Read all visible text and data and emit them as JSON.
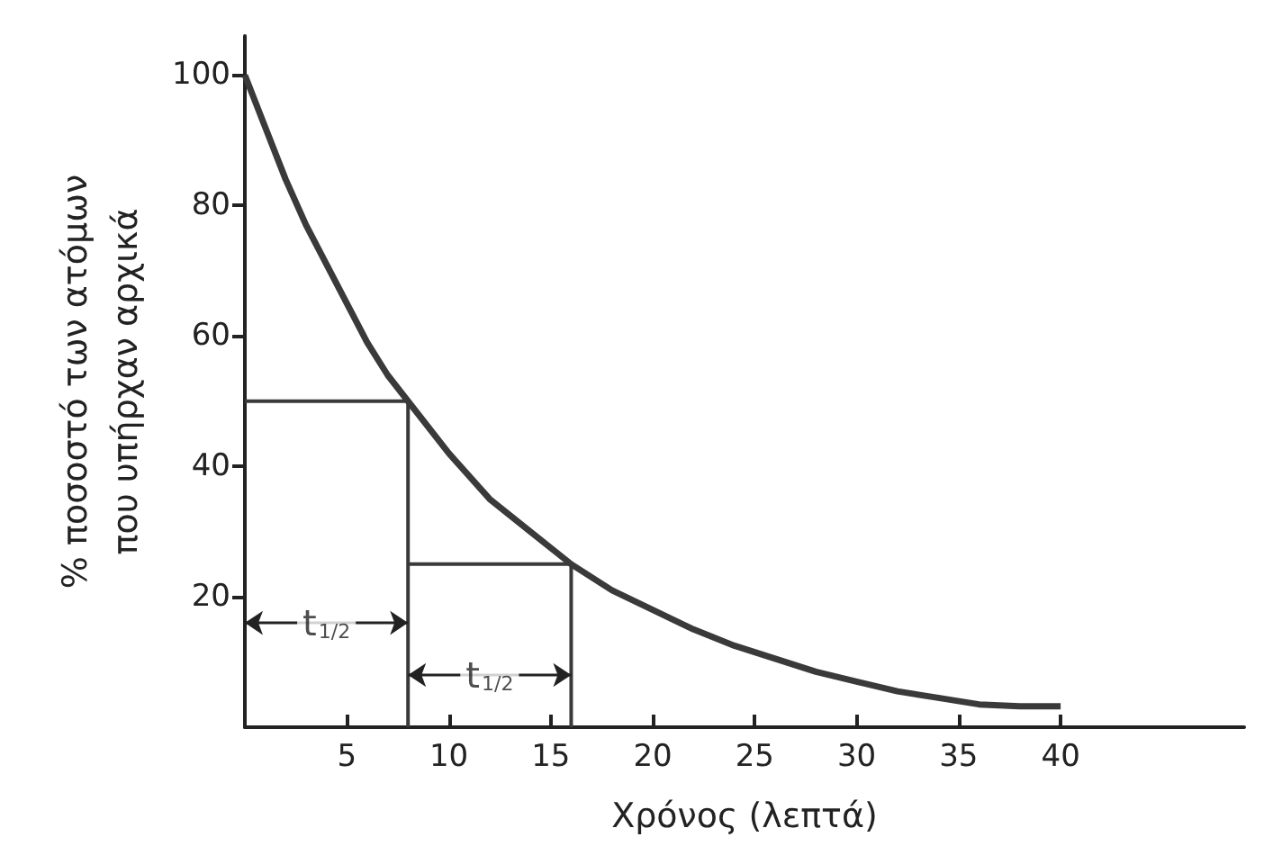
{
  "chart_data": {
    "type": "line",
    "xlabel": "Χρόνος (λεπτά)",
    "ylabel": "% ποσοστό των ατόμων\nπου υπήρχαν αρχικά",
    "x": [
      0,
      1,
      2,
      3,
      4,
      5,
      6,
      7,
      8,
      10,
      12,
      14,
      16,
      18,
      20,
      22,
      24,
      26,
      28,
      30,
      32,
      34,
      36,
      38,
      40
    ],
    "series": [
      {
        "color": "#3a3a3a",
        "values": [
          100,
          92,
          84,
          77,
          71,
          65,
          59,
          54,
          50,
          42,
          35,
          30,
          25,
          21,
          18,
          15,
          12.5,
          10.5,
          8.5,
          7,
          5.5,
          4.5,
          3.5,
          3.2,
          3.2
        ]
      },
      {
        "color": "#3a3a3a",
        "x": [
          0,
          8,
          8
        ],
        "values": [
          50,
          50,
          0
        ]
      },
      {
        "color": "#3a3a3a",
        "x": [
          8,
          16,
          16
        ],
        "values": [
          25,
          25,
          0
        ]
      }
    ],
    "annotations": [
      {
        "text": "t$_{1/2}$",
        "x": 4,
        "y": 16
      },
      {
        "text": "t$_{1/2}$",
        "x": 12,
        "y": 8
      }
    ],
    "xlim": [
      0,
      49
    ],
    "ylim": [
      0,
      106
    ],
    "xticks": [
      5,
      10,
      15,
      20,
      25,
      30,
      35,
      40
    ],
    "yticks": [
      20,
      40,
      60,
      80,
      100
    ],
    "grid": false,
    "marker": "none",
    "line_style": "solid"
  }
}
